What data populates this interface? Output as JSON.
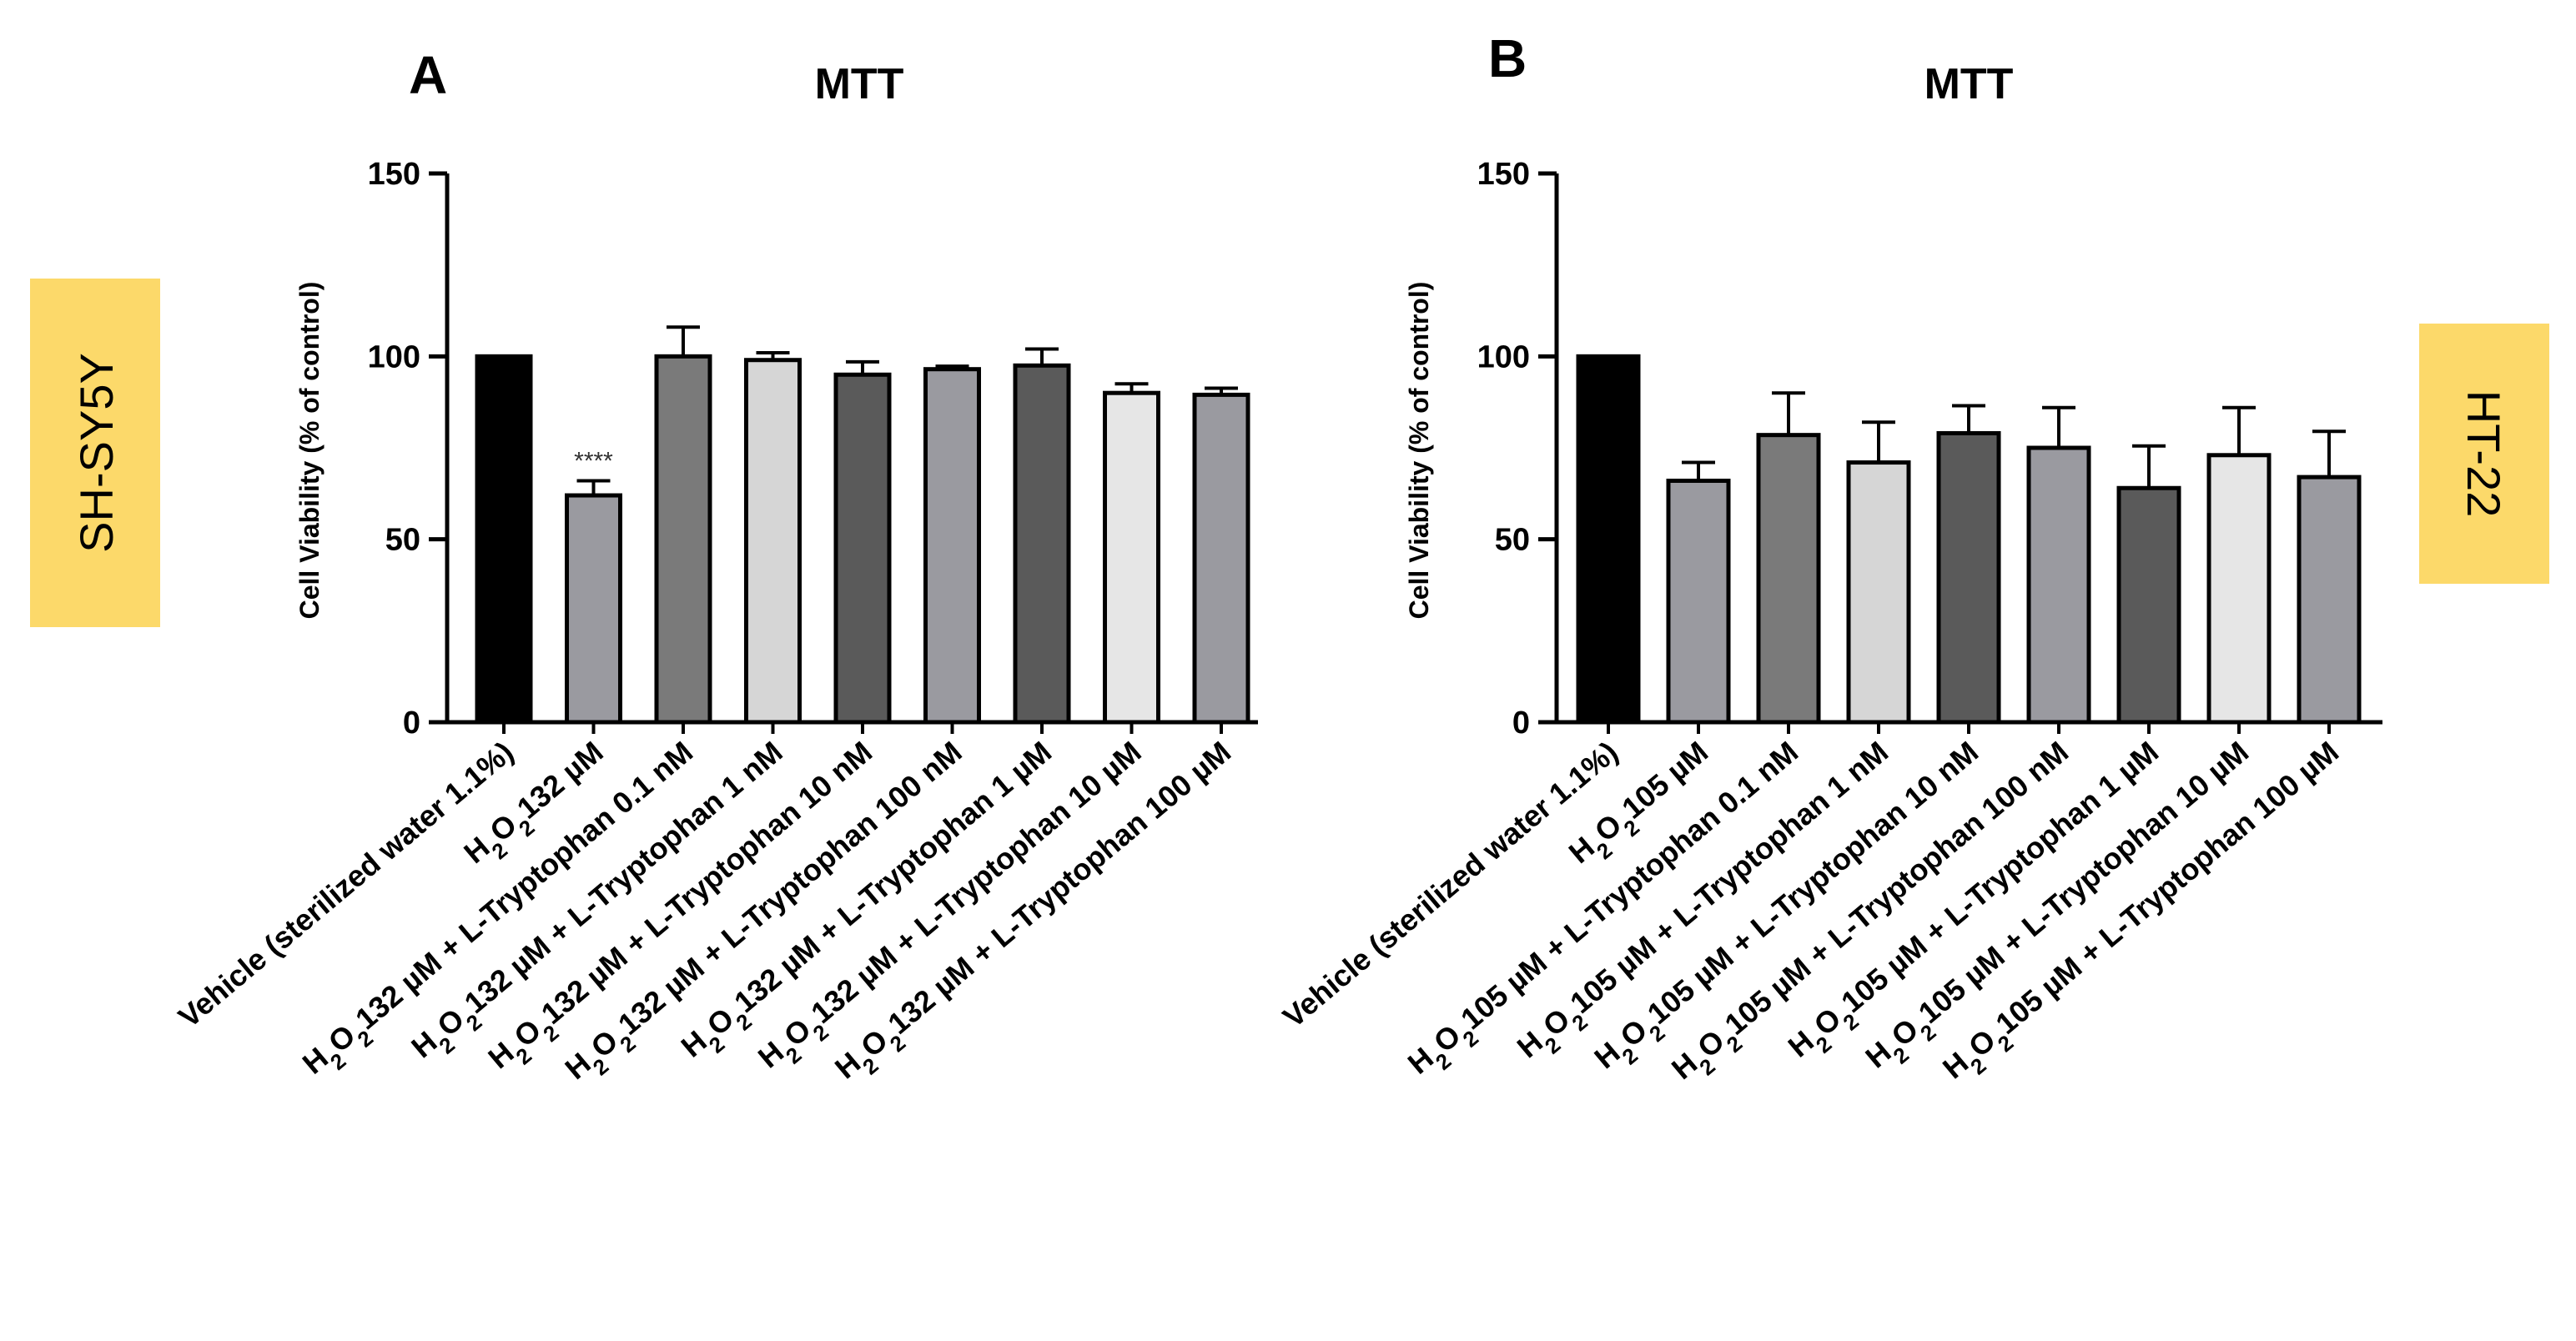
{
  "side_labels": {
    "left": "SH-SY5Y",
    "right": "HT-22"
  },
  "colors": {
    "side_label_bg": "#fcd96a",
    "bar_fills": [
      "#000000",
      "#9a9aa0",
      "#7a7a7a",
      "#d6d6d6",
      "#5a5a5a",
      "#9a9aa0",
      "#5a5a5a",
      "#e6e6e6",
      "#9a9aa0"
    ]
  },
  "chart_data": [
    {
      "panel": "A",
      "type": "bar",
      "title": "MTT",
      "xlabel": "",
      "ylabel": "Cell Viability (% of control)",
      "ylim": [
        0,
        150
      ],
      "yticks": [
        0,
        50,
        100,
        150
      ],
      "categories": [
        "Vehicle  (sterilized water 1.1%)",
        "H2O2132 µM",
        "H2O2132 µM + L-Tryptophan 0.1 nM",
        "H2O2132 µM + L-Tryptophan 1 nM",
        "H2O2132 µM + L-Tryptophan 10 nM",
        "H2O2132 µM + L-Tryptophan 100 nM",
        "H2O2132 µM + L-Tryptophan 1 µM",
        "H2O2132 µM + L-Tryptophan 10 µM",
        "H2O2132 µM + L-Tryptophan 100 µM"
      ],
      "values": [
        100,
        62,
        100,
        99,
        95,
        96.5,
        97.5,
        90,
        89.5
      ],
      "errors": [
        0,
        4,
        8,
        2,
        3.5,
        0.8,
        4.5,
        2.5,
        1.8
      ],
      "annotations": [
        {
          "category_index": 1,
          "text": "****"
        }
      ]
    },
    {
      "panel": "B",
      "type": "bar",
      "title": "MTT",
      "xlabel": "",
      "ylabel": "Cell Viability (% of control)",
      "ylim": [
        0,
        150
      ],
      "yticks": [
        0,
        50,
        100,
        150
      ],
      "categories": [
        "Vehicle (sterilized water 1.1%)",
        "H2O2105 µM",
        "H2O2105 µM + L-Tryptophan 0.1 nM",
        "H2O2105 µM + L-Tryptophan 1 nM",
        "H2O2105 µM + L-Tryptophan 10 nM",
        "H2O2105 µM + L-Tryptophan 100 nM",
        "H2O2105 µM + L-Tryptophan 1 µM",
        "H2O2105 µM + L-Tryptophan 10 µM",
        "H2O2105 µM + L-Tryptophan 100 µM"
      ],
      "values": [
        100,
        66,
        78.5,
        71,
        79,
        75,
        64,
        73,
        67
      ],
      "errors": [
        0,
        5,
        11.5,
        11,
        7.5,
        11,
        11.5,
        13,
        12.5
      ],
      "annotations": []
    }
  ]
}
